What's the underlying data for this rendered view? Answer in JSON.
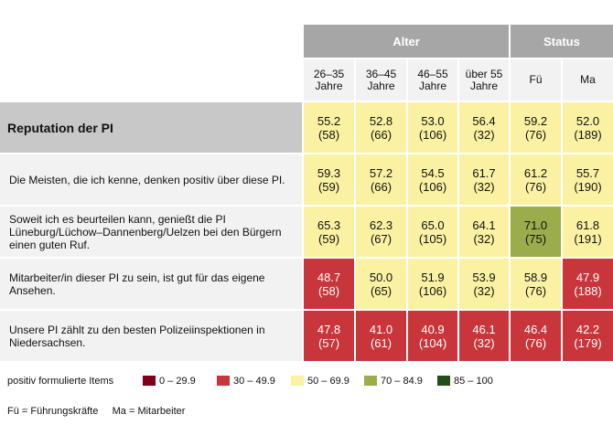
{
  "header": {
    "groups": [
      "Alter",
      "Status"
    ],
    "subheaders": [
      "26–35 Jahre",
      "36–45 Jahre",
      "46–55 Jahre",
      "über 55 Jahre",
      "Fü",
      "Ma"
    ]
  },
  "rows": [
    {
      "label": "Reputation der PI",
      "cells": [
        {
          "value": "55.2",
          "n": "(58)",
          "band": "yellow"
        },
        {
          "value": "52.8",
          "n": "(66)",
          "band": "yellow"
        },
        {
          "value": "53.0",
          "n": "(106)",
          "band": "yellow"
        },
        {
          "value": "56.4",
          "n": "(32)",
          "band": "yellow"
        },
        {
          "value": "59.2",
          "n": "(76)",
          "band": "yellow"
        },
        {
          "value": "52.0",
          "n": "(189)",
          "band": "yellow"
        }
      ]
    },
    {
      "label": "Die Meisten, die ich kenne, denken positiv über diese PI.",
      "cells": [
        {
          "value": "59.3",
          "n": "(59)",
          "band": "yellow"
        },
        {
          "value": "57.2",
          "n": "(66)",
          "band": "yellow"
        },
        {
          "value": "54.5",
          "n": "(106)",
          "band": "yellow"
        },
        {
          "value": "61.7",
          "n": "(32)",
          "band": "yellow"
        },
        {
          "value": "61.2",
          "n": "(76)",
          "band": "yellow"
        },
        {
          "value": "55.7",
          "n": "(190)",
          "band": "yellow"
        }
      ]
    },
    {
      "label": "Soweit ich es beurteilen kann, genießt die PI Lüneburg/Lüchow–Dannenberg/Uelzen bei den Bürgern einen guten Ruf.",
      "cells": [
        {
          "value": "65.3",
          "n": "(59)",
          "band": "yellow"
        },
        {
          "value": "62.3",
          "n": "(67)",
          "band": "yellow"
        },
        {
          "value": "65.0",
          "n": "(105)",
          "band": "yellow"
        },
        {
          "value": "64.1",
          "n": "(32)",
          "band": "yellow"
        },
        {
          "value": "71.0",
          "n": "(75)",
          "band": "green"
        },
        {
          "value": "61.8",
          "n": "(191)",
          "band": "yellow"
        }
      ]
    },
    {
      "label": "Mitarbeiter/in dieser PI zu sein, ist gut für das eigene Ansehen.",
      "cells": [
        {
          "value": "48.7",
          "n": "(58)",
          "band": "red"
        },
        {
          "value": "50.0",
          "n": "(65)",
          "band": "yellow"
        },
        {
          "value": "51.9",
          "n": "(106)",
          "band": "yellow"
        },
        {
          "value": "53.9",
          "n": "(32)",
          "band": "yellow"
        },
        {
          "value": "58.9",
          "n": "(76)",
          "band": "yellow"
        },
        {
          "value": "47.9",
          "n": "(188)",
          "band": "red"
        }
      ]
    },
    {
      "label": "Unsere PI zählt zu den besten Polizeiinspektionen in Niedersachsen.",
      "cells": [
        {
          "value": "47.8",
          "n": "(57)",
          "band": "red"
        },
        {
          "value": "41.0",
          "n": "(61)",
          "band": "red"
        },
        {
          "value": "40.9",
          "n": "(104)",
          "band": "red"
        },
        {
          "value": "46.1",
          "n": "(32)",
          "band": "red"
        },
        {
          "value": "46.4",
          "n": "(76)",
          "band": "red"
        },
        {
          "value": "42.2",
          "n": "(179)",
          "band": "red"
        }
      ]
    }
  ],
  "legend": {
    "title": "positiv formulierte Items",
    "items": [
      {
        "label": "0 – 29.9",
        "color": "#7f0016"
      },
      {
        "label": "30 – 49.9",
        "color": "#c8363b"
      },
      {
        "label": "50 – 69.9",
        "color": "#faf2a2"
      },
      {
        "label": "70 – 84.9",
        "color": "#9aad4a"
      },
      {
        "label": "85 – 100",
        "color": "#254d1a"
      }
    ]
  },
  "band_colors": {
    "red": "#c8363b",
    "yellow": "#faf2a2",
    "green": "#9aad4a",
    "grey": "#c8c8c8"
  },
  "footnote": "Fü = Führungskräfte     Ma = Mitarbeiter"
}
